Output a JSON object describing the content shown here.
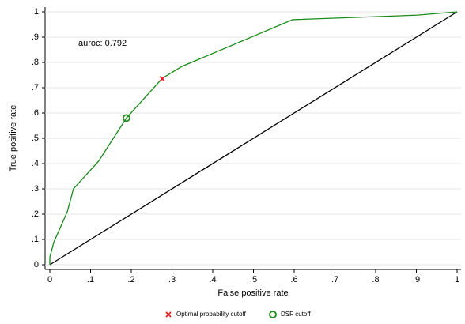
{
  "chart_data": {
    "type": "line",
    "xlabel": "False positive rate",
    "ylabel": "True positive rate",
    "annotation": "auroc: 0.792",
    "xlim": [
      0,
      1
    ],
    "ylim": [
      0,
      1
    ],
    "xticks": [
      0,
      {
        "value": 0.1,
        "label": ".1"
      },
      {
        "value": 0.2,
        "label": ".2"
      },
      {
        "value": 0.3,
        "label": ".3"
      },
      {
        "value": 0.4,
        "label": ".4"
      },
      {
        "value": 0.5,
        "label": ".5"
      },
      {
        "value": 0.6,
        "label": ".6"
      },
      {
        "value": 0.7,
        "label": ".7"
      },
      {
        "value": 0.8,
        "label": ".8"
      },
      {
        "value": 0.9,
        "label": ".9"
      },
      1
    ],
    "yticks": [
      0,
      {
        "value": 0.1,
        "label": ".1"
      },
      {
        "value": 0.2,
        "label": ".2"
      },
      {
        "value": 0.3,
        "label": ".3"
      },
      {
        "value": 0.4,
        "label": ".4"
      },
      {
        "value": 0.5,
        "label": ".5"
      },
      {
        "value": 0.6,
        "label": ".6"
      },
      {
        "value": 0.7,
        "label": ".7"
      },
      {
        "value": 0.8,
        "label": ".8"
      },
      {
        "value": 0.9,
        "label": ".9"
      },
      1
    ],
    "grid": true,
    "curve": {
      "color": "#1a8a1a",
      "x": [
        0,
        0,
        0.01,
        0.043,
        0.058,
        0.12,
        0.188,
        0.276,
        0.324,
        0.596,
        0.903,
        1
      ],
      "y": [
        0,
        0.03,
        0.09,
        0.21,
        0.3,
        0.41,
        0.58,
        0.737,
        0.784,
        0.969,
        0.987,
        1
      ]
    },
    "reference_line": {
      "color": "#000000",
      "x": [
        0,
        1
      ],
      "y": [
        0,
        1
      ]
    },
    "markers": [
      {
        "name": "Optimal probability cutoff",
        "symbol": "x",
        "color": "#e8141e",
        "x": 0.276,
        "y": 0.735
      },
      {
        "name": "DSF cutoff",
        "symbol": "circle",
        "color": "#1a8a1a",
        "x": 0.188,
        "y": 0.58
      }
    ]
  }
}
